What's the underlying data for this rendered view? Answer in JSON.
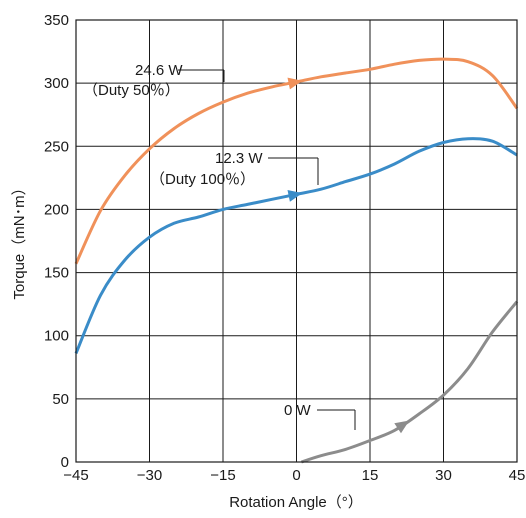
{
  "chart_data": {
    "type": "line",
    "xlabel": "Rotation Angle（°）",
    "ylabel": "Torque（mN･m）",
    "xlim": [
      -45,
      45
    ],
    "ylim": [
      0,
      350
    ],
    "x_ticks": [
      -45,
      -30,
      -15,
      0,
      15,
      30,
      45
    ],
    "x_tick_labels": [
      "−45",
      "−30",
      "−15",
      "0",
      "15",
      "30",
      "45"
    ],
    "y_ticks": [
      0,
      50,
      100,
      150,
      200,
      250,
      300,
      350
    ],
    "y_tick_labels": [
      "0",
      "50",
      "100",
      "150",
      "200",
      "250",
      "300",
      "350"
    ],
    "grid": true,
    "series": [
      {
        "name": "24.6W (Duty 50%)",
        "color": "#f0915a",
        "x": [
          -45,
          -40,
          -35,
          -30,
          -25,
          -20,
          -15,
          -10,
          -5,
          0,
          5,
          10,
          15,
          20,
          25,
          30,
          35,
          40,
          45
        ],
        "y": [
          157,
          199,
          227,
          248,
          264,
          276,
          285,
          292,
          297,
          301,
          305,
          308,
          311,
          315,
          318,
          319,
          317,
          306,
          280
        ]
      },
      {
        "name": "12.3W (Duty 100%)",
        "color": "#3a8cc8",
        "x": [
          -45,
          -40,
          -35,
          -30,
          -25,
          -20,
          -15,
          -10,
          -5,
          0,
          5,
          10,
          15,
          20,
          25,
          30,
          35,
          40,
          45
        ],
        "y": [
          86,
          132,
          160,
          178,
          189,
          194,
          200,
          204,
          208,
          212,
          216,
          222,
          228,
          236,
          246,
          253,
          256,
          254,
          243
        ]
      },
      {
        "name": "0W",
        "color": "#8c8c8c",
        "x": [
          1,
          5,
          10,
          15,
          20,
          25,
          30,
          35,
          40,
          45
        ],
        "y": [
          0,
          5,
          10,
          17,
          25,
          38,
          53,
          74,
          103,
          127
        ]
      }
    ],
    "annotations": [
      {
        "line1": "24.6 W",
        "line2": "（Duty 50％）"
      },
      {
        "line1": "12.3 W",
        "line2": "（Duty 100％）"
      },
      {
        "line1": "0 W",
        "line2": ""
      }
    ]
  }
}
